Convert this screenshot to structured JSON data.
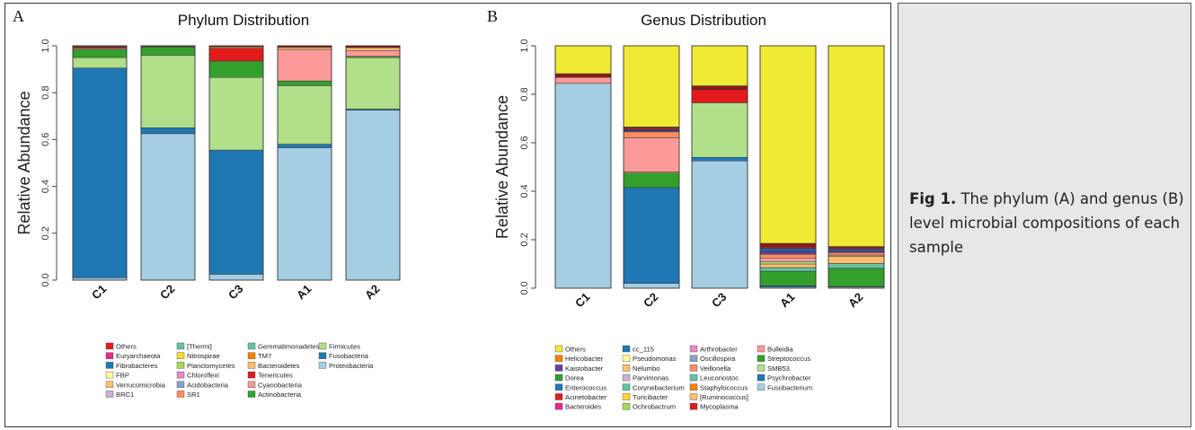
{
  "panel_a": {
    "letter": "A",
    "chart_data": {
      "type": "bar",
      "title": "Phylum Distribution",
      "xlabel": "",
      "ylabel": "Relative Abundance",
      "ylim": [
        0,
        1
      ],
      "yticks": [
        "0.0",
        "0.2",
        "0.4",
        "0.6",
        "0.8",
        "1.0"
      ],
      "categories": [
        "C1",
        "C2",
        "C3",
        "A1",
        "A2"
      ],
      "stacked": true,
      "series": [
        {
          "name": "Proteobacteria",
          "color": "#a6cee3",
          "values": [
            0.01,
            0.625,
            0.025,
            0.565,
            0.725
          ]
        },
        {
          "name": "Fusobacteria",
          "color": "#1f78b4",
          "values": [
            0.895,
            0.025,
            0.53,
            0.015,
            0.005
          ]
        },
        {
          "name": "Firmicutes",
          "color": "#b2df8a",
          "values": [
            0.045,
            0.31,
            0.31,
            0.25,
            0.22
          ]
        },
        {
          "name": "Actinobacteria",
          "color": "#33a02c",
          "values": [
            0.035,
            0.035,
            0.07,
            0.02,
            0.005
          ]
        },
        {
          "name": "Cyanobacteria",
          "color": "#fb9a99",
          "values": [
            0.005,
            0.0,
            0.0,
            0.135,
            0.025
          ]
        },
        {
          "name": "Tenericutes",
          "color": "#e31a1c",
          "values": [
            0.005,
            0.0,
            0.055,
            0.0,
            0.0
          ]
        },
        {
          "name": "Bacteroidetes",
          "color": "#fdbf6f",
          "values": [
            0.003,
            0.003,
            0.005,
            0.008,
            0.012
          ]
        },
        {
          "name": "Others",
          "color": "#8b1a1a",
          "values": [
            0.002,
            0.002,
            0.005,
            0.007,
            0.008
          ]
        }
      ],
      "legend": {
        "placement": "bottom",
        "columns": [
          [
            {
              "name": "Others",
              "color": "#e31a1c"
            },
            {
              "name": "Euryarchaeota",
              "color": "#e7298a"
            },
            {
              "name": "Fibrobacteres",
              "color": "#1f78b4"
            },
            {
              "name": "FBP",
              "color": "#ffff99"
            },
            {
              "name": "Verrucomicrobia",
              "color": "#fdbf6f"
            },
            {
              "name": "BRC1",
              "color": "#cab2d6"
            }
          ],
          [
            {
              "name": "[Thermi]",
              "color": "#66c2a5"
            },
            {
              "name": "Nitrospirae",
              "color": "#ffd92f"
            },
            {
              "name": "Planctomycetes",
              "color": "#a6d854"
            },
            {
              "name": "Chloroflexi",
              "color": "#e78ac3"
            },
            {
              "name": "Acidobacteria",
              "color": "#8da0cb"
            },
            {
              "name": "SR1",
              "color": "#fc8d62"
            }
          ],
          [
            {
              "name": "Gemmatimonadetes",
              "color": "#66c2a5"
            },
            {
              "name": "TM7",
              "color": "#ff7f00"
            },
            {
              "name": "Bacteroidetes",
              "color": "#fdbf6f"
            },
            {
              "name": "Tenericutes",
              "color": "#e31a1c"
            },
            {
              "name": "Cyanobacteria",
              "color": "#fb9a99"
            },
            {
              "name": "Actinobacteria",
              "color": "#33a02c"
            }
          ],
          [
            {
              "name": "Firmicutes",
              "color": "#b2df8a"
            },
            {
              "name": "Fusobacteria",
              "color": "#1f78b4"
            },
            {
              "name": "Proteobacteria",
              "color": "#a6cee3"
            }
          ]
        ]
      }
    }
  },
  "panel_b": {
    "letter": "B",
    "chart_data": {
      "type": "bar",
      "title": "Genus Distribution",
      "xlabel": "",
      "ylabel": "Relative Abundance",
      "ylim": [
        0,
        1
      ],
      "yticks": [
        "0.0",
        "0.2",
        "0.4",
        "0.6",
        "0.8",
        "1.0"
      ],
      "categories": [
        "C1",
        "C2",
        "C3",
        "A1",
        "A2"
      ],
      "stacked": true,
      "series": [
        {
          "name": "Fusobacterium",
          "color": "#a6cee3",
          "values": [
            0.845,
            0.02,
            0.525,
            0.005,
            0.005
          ]
        },
        {
          "name": "Psychrobacter",
          "color": "#1f78b4",
          "values": [
            0.0,
            0.395,
            0.015,
            0.005,
            0.002
          ]
        },
        {
          "name": "Streptococcus",
          "color": "#33a02c",
          "values": [
            0.0,
            0.06,
            0.0,
            0.06,
            0.075
          ]
        },
        {
          "name": "Leuconostoc",
          "color": "#66c2a5",
          "values": [
            0.0,
            0.0,
            0.0,
            0.015,
            0.02
          ]
        },
        {
          "name": "Staphylococcus",
          "color": "#fdbf6f",
          "values": [
            0.0,
            0.005,
            0.0,
            0.015,
            0.03
          ]
        },
        {
          "name": "SMB53",
          "color": "#b2df8a",
          "values": [
            0.0,
            0.0,
            0.225,
            0.01,
            0.0
          ]
        },
        {
          "name": "Bulleidia",
          "color": "#fb9a99",
          "values": [
            0.025,
            0.14,
            0.0,
            0.015,
            0.005
          ]
        },
        {
          "name": "Veillonella",
          "color": "#fc8d62",
          "values": [
            0.0,
            0.025,
            0.0,
            0.015,
            0.01
          ]
        },
        {
          "name": "Kaistobacter",
          "color": "#6a3d9a",
          "values": [
            0.0,
            0.005,
            0.0,
            0.01,
            0.005
          ]
        },
        {
          "name": "cc_115",
          "color": "#2c5aa0",
          "values": [
            0.0,
            0.005,
            0.0,
            0.015,
            0.01
          ]
        },
        {
          "name": "Acinetobacter",
          "color": "#e31a1c",
          "values": [
            0.0,
            0.005,
            0.055,
            0.005,
            0.005
          ]
        },
        {
          "name": "Mycoplasma",
          "color": "#8b1a1a",
          "values": [
            0.015,
            0.005,
            0.015,
            0.015,
            0.005
          ]
        },
        {
          "name": "Others",
          "color": "#f0ea33",
          "values": [
            0.115,
            0.335,
            0.165,
            0.815,
            0.828
          ]
        }
      ],
      "legend": {
        "placement": "bottom",
        "columns": [
          [
            {
              "name": "Others",
              "color": "#f0ea33"
            },
            {
              "name": "Helicobacter",
              "color": "#ff7f00"
            },
            {
              "name": "Kaistobacter",
              "color": "#6a3d9a"
            },
            {
              "name": "Dorea",
              "color": "#33a02c"
            },
            {
              "name": "Enterococcus",
              "color": "#1f78b4"
            },
            {
              "name": "Acinetobacter",
              "color": "#e31a1c"
            },
            {
              "name": "Bacteroides",
              "color": "#e7298a"
            }
          ],
          [
            {
              "name": "cc_115",
              "color": "#1f78b4"
            },
            {
              "name": "Pseudomonas",
              "color": "#ffff99"
            },
            {
              "name": "Nelumbo",
              "color": "#fdbf6f"
            },
            {
              "name": "Parvimonas",
              "color": "#cab2d6"
            },
            {
              "name": "Corynebacterium",
              "color": "#66c2a5"
            },
            {
              "name": "Turicibacter",
              "color": "#ffd92f"
            },
            {
              "name": "Ochrobactrum",
              "color": "#a6d854"
            }
          ],
          [
            {
              "name": "Arthrobacter",
              "color": "#e78ac3"
            },
            {
              "name": "Oscillospira",
              "color": "#8da0cb"
            },
            {
              "name": "Veillonella",
              "color": "#fc8d62"
            },
            {
              "name": "Leuconostoc",
              "color": "#66c2a5"
            },
            {
              "name": "Staphylococcus",
              "color": "#ff7f00"
            },
            {
              "name": "[Ruminococcus]",
              "color": "#fdbf6f"
            },
            {
              "name": "Mycoplasma",
              "color": "#e31a1c"
            }
          ],
          [
            {
              "name": "Bulleidia",
              "color": "#fb9a99"
            },
            {
              "name": "Streptococcus",
              "color": "#33a02c"
            },
            {
              "name": "SMB53",
              "color": "#b2df8a"
            },
            {
              "name": "Psychrobacter",
              "color": "#1f78b4"
            },
            {
              "name": "Fusobacterium",
              "color": "#a6cee3"
            }
          ]
        ]
      }
    }
  },
  "caption": {
    "label": "Fig 1.",
    "text": " The phylum (A) and genus (B) level microbial compositions of each sample"
  }
}
